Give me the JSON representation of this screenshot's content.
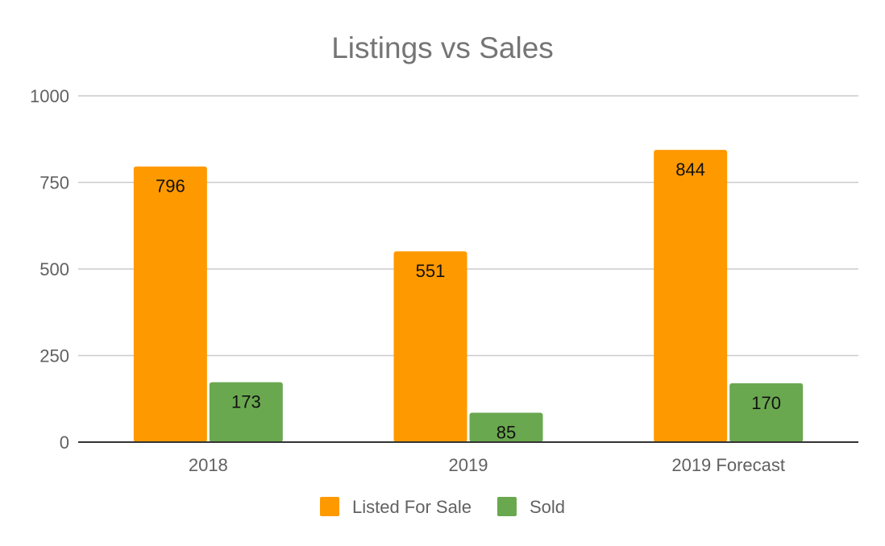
{
  "chart_data": {
    "type": "bar",
    "title": "Listings vs Sales",
    "xlabel": "",
    "ylabel": "",
    "categories": [
      "2018",
      "2019",
      "2019 Forecast"
    ],
    "series": [
      {
        "name": "Listed For Sale",
        "color": "#ff9900",
        "values": [
          796,
          551,
          844
        ]
      },
      {
        "name": "Sold",
        "color": "#6aa84f",
        "values": [
          173,
          85,
          170
        ]
      }
    ],
    "ylim": [
      0,
      1000
    ],
    "yticks": [
      "0",
      "250",
      "500",
      "750",
      "1000"
    ],
    "ytick_values": [
      0,
      250,
      500,
      750,
      1000
    ],
    "grid": true,
    "legend_position": "bottom",
    "data_labels": true
  }
}
